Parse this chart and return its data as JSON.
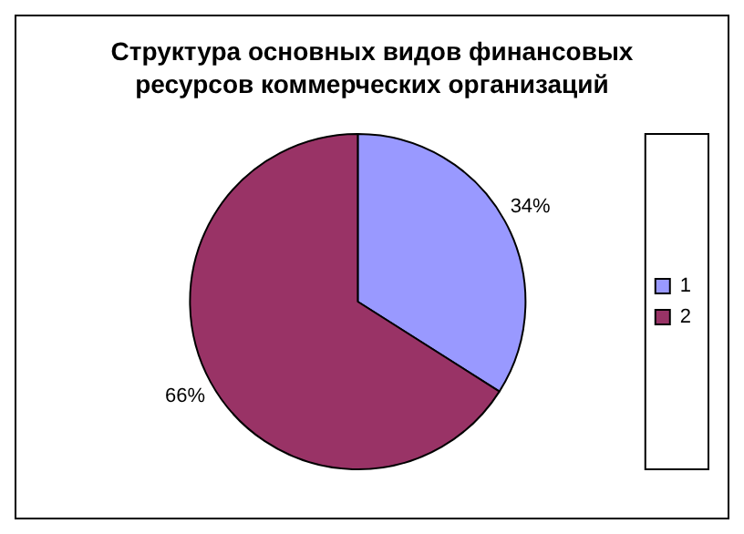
{
  "chart_data": {
    "type": "pie",
    "title": "Структура основных видов финансовых ресурсов коммерческих организаций",
    "categories": [
      "1",
      "2"
    ],
    "values": [
      34,
      66
    ],
    "colors": [
      "#9999ff",
      "#993366"
    ],
    "value_labels": [
      "34%",
      "66%"
    ],
    "legend": "right"
  }
}
